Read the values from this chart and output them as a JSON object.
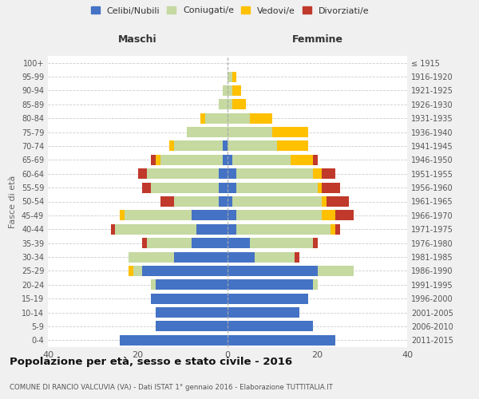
{
  "age_groups": [
    "0-4",
    "5-9",
    "10-14",
    "15-19",
    "20-24",
    "25-29",
    "30-34",
    "35-39",
    "40-44",
    "45-49",
    "50-54",
    "55-59",
    "60-64",
    "65-69",
    "70-74",
    "75-79",
    "80-84",
    "85-89",
    "90-94",
    "95-99",
    "100+"
  ],
  "birth_years": [
    "2011-2015",
    "2006-2010",
    "2001-2005",
    "1996-2000",
    "1991-1995",
    "1986-1990",
    "1981-1985",
    "1976-1980",
    "1971-1975",
    "1966-1970",
    "1961-1965",
    "1956-1960",
    "1951-1955",
    "1946-1950",
    "1941-1945",
    "1936-1940",
    "1931-1935",
    "1926-1930",
    "1921-1925",
    "1916-1920",
    "≤ 1915"
  ],
  "males": {
    "celibi": [
      24,
      16,
      16,
      17,
      16,
      19,
      12,
      8,
      7,
      8,
      2,
      2,
      2,
      1,
      1,
      0,
      0,
      0,
      0,
      0,
      0
    ],
    "coniugati": [
      0,
      0,
      0,
      0,
      1,
      2,
      10,
      10,
      18,
      15,
      10,
      15,
      16,
      14,
      11,
      9,
      5,
      2,
      1,
      0,
      0
    ],
    "vedovi": [
      0,
      0,
      0,
      0,
      0,
      1,
      0,
      0,
      0,
      1,
      0,
      0,
      0,
      1,
      1,
      0,
      1,
      0,
      0,
      0,
      0
    ],
    "divorziati": [
      0,
      0,
      0,
      0,
      0,
      0,
      0,
      1,
      1,
      0,
      3,
      2,
      2,
      1,
      0,
      0,
      0,
      0,
      0,
      0,
      0
    ]
  },
  "females": {
    "nubili": [
      24,
      19,
      16,
      18,
      19,
      20,
      6,
      5,
      2,
      2,
      1,
      2,
      2,
      1,
      0,
      0,
      0,
      0,
      0,
      0,
      0
    ],
    "coniugate": [
      0,
      0,
      0,
      0,
      1,
      8,
      9,
      14,
      21,
      19,
      20,
      18,
      17,
      13,
      11,
      10,
      5,
      1,
      1,
      1,
      0
    ],
    "vedove": [
      0,
      0,
      0,
      0,
      0,
      0,
      0,
      0,
      1,
      3,
      1,
      1,
      2,
      5,
      7,
      8,
      5,
      3,
      2,
      1,
      0
    ],
    "divorziate": [
      0,
      0,
      0,
      0,
      0,
      0,
      1,
      1,
      1,
      4,
      5,
      4,
      3,
      1,
      0,
      0,
      0,
      0,
      0,
      0,
      0
    ]
  },
  "colors": {
    "celibi": "#4472c4",
    "coniugati": "#c5d9a0",
    "vedovi": "#ffc000",
    "divorziati": "#c0392b"
  },
  "title": "Popolazione per età, sesso e stato civile - 2016",
  "subtitle": "COMUNE DI RANCIO VALCUVIA (VA) - Dati ISTAT 1° gennaio 2016 - Elaborazione TUTTITALIA.IT",
  "xlabel_left": "Maschi",
  "xlabel_right": "Femmine",
  "ylabel_left": "Fasce di età",
  "xlim": 40,
  "legend_labels": [
    "Celibi/Nubili",
    "Coniugati/e",
    "Vedovi/e",
    "Divorziati/e"
  ],
  "background_color": "#f0f0f0",
  "plot_background": "#ffffff"
}
